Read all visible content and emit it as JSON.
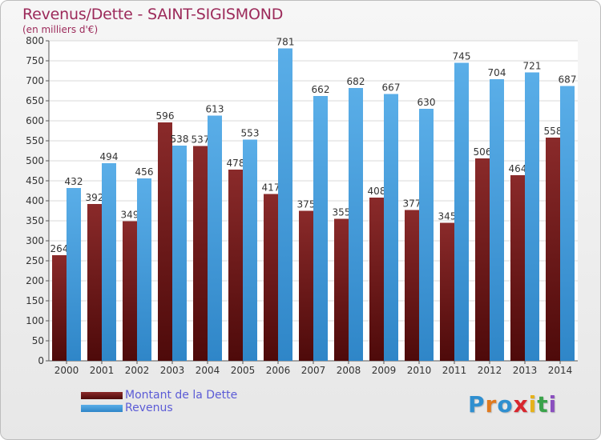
{
  "header": {
    "title": "Revenus/Dette - SAINT-SIGISMOND",
    "subtitle": "(en milliers d'€)"
  },
  "legend": {
    "items": [
      {
        "label": "Montant de la Dette",
        "color": "#7b1e1e"
      },
      {
        "label": "Revenus",
        "color": "#4a9fe0"
      }
    ]
  },
  "logo": {
    "letters": [
      "P",
      "r",
      "o",
      "x",
      "i",
      "t",
      "i"
    ],
    "colors": [
      "#2f8fd0",
      "#e07a1f",
      "#2f8fd0",
      "#d8262e",
      "#e6b21b",
      "#3aa34a",
      "#8a4fbf"
    ]
  },
  "chart_data": {
    "type": "bar",
    "title": "Revenus/Dette - SAINT-SIGISMOND",
    "ylabel": "(en milliers d'€)",
    "xlabel": "",
    "ylim": [
      0,
      800
    ],
    "yticks": [
      0,
      50,
      100,
      150,
      200,
      250,
      300,
      350,
      400,
      450,
      500,
      550,
      600,
      650,
      700,
      750,
      800
    ],
    "grid": true,
    "legend_position": "bottom-left",
    "categories": [
      "2000",
      "2001",
      "2002",
      "2003",
      "2004",
      "2005",
      "2006",
      "2007",
      "2008",
      "2009",
      "2010",
      "2011",
      "2012",
      "2013",
      "2014"
    ],
    "series": [
      {
        "name": "Montant de la Dette",
        "color": "#7b1e1e",
        "values": [
          264,
          392,
          349,
          596,
          537,
          478,
          417,
          375,
          355,
          408,
          377,
          345,
          506,
          464,
          558
        ]
      },
      {
        "name": "Revenus",
        "color": "#4a9fe0",
        "values": [
          432,
          494,
          456,
          538,
          613,
          553,
          781,
          662,
          682,
          667,
          630,
          745,
          704,
          721,
          687
        ]
      }
    ]
  }
}
